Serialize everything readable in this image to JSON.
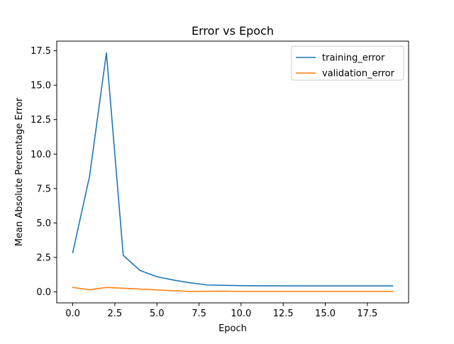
{
  "chart_data": {
    "type": "line",
    "title": "Error vs Epoch",
    "xlabel": "Epoch",
    "ylabel": "Mean Absolute Percentage Error",
    "xlim": [
      -0.95,
      19.95
    ],
    "ylim": [
      -0.8,
      18.2
    ],
    "xticks": [
      0.0,
      2.5,
      5.0,
      7.5,
      10.0,
      12.5,
      15.0,
      17.5
    ],
    "xtick_labels": [
      "0.0",
      "2.5",
      "5.0",
      "7.5",
      "10.0",
      "12.5",
      "15.0",
      "17.5"
    ],
    "yticks": [
      0.0,
      2.5,
      5.0,
      7.5,
      10.0,
      12.5,
      15.0,
      17.5
    ],
    "ytick_labels": [
      "0.0",
      "2.5",
      "5.0",
      "7.5",
      "10.0",
      "12.5",
      "15.0",
      "17.5"
    ],
    "grid": false,
    "legend_position": "upper right",
    "x": [
      0,
      1,
      2,
      3,
      4,
      5,
      6,
      7,
      8,
      9,
      10,
      11,
      12,
      13,
      14,
      15,
      16,
      17,
      18,
      19
    ],
    "series": [
      {
        "name": "training_error",
        "color": "#1f77b4",
        "values": [
          2.85,
          8.4,
          17.35,
          2.65,
          1.55,
          1.1,
          0.85,
          0.65,
          0.5,
          0.47,
          0.45,
          0.44,
          0.44,
          0.43,
          0.43,
          0.43,
          0.43,
          0.43,
          0.43,
          0.43
        ]
      },
      {
        "name": "validation_error",
        "color": "#ff7f0e",
        "values": [
          0.32,
          0.15,
          0.32,
          0.26,
          0.2,
          0.14,
          0.08,
          0.03,
          0.04,
          0.05,
          0.03,
          0.03,
          0.03,
          0.03,
          0.03,
          0.03,
          0.03,
          0.03,
          0.03,
          0.03
        ]
      }
    ]
  }
}
